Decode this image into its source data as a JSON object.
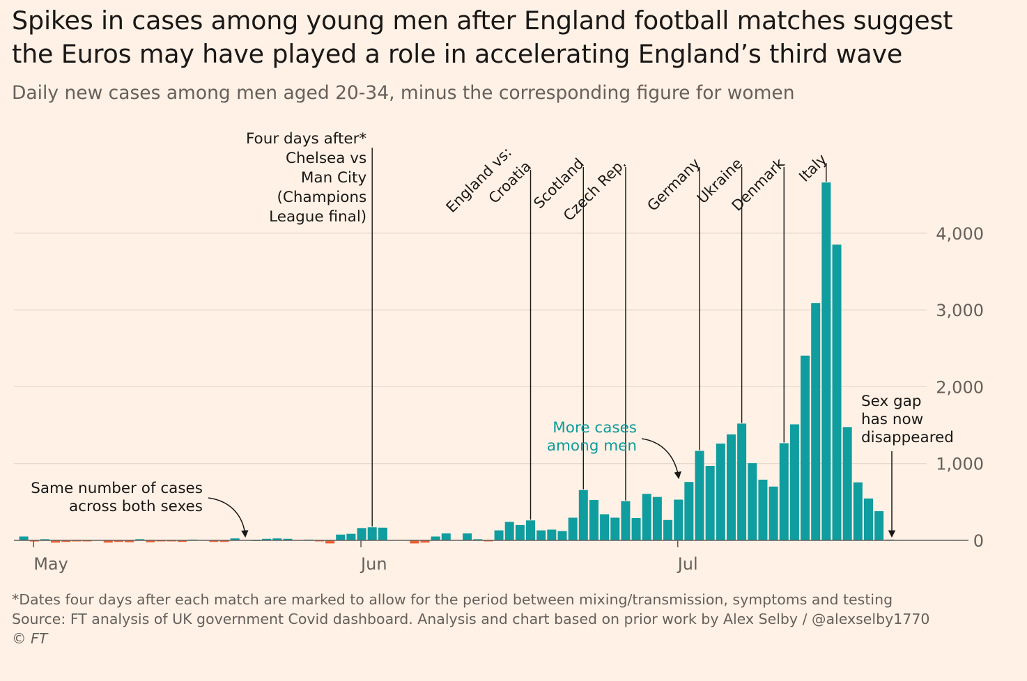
{
  "title_lines": [
    "Spikes in cases among young men after England football matches suggest",
    "the Euros may have played a role in accelerating England’s third wave"
  ],
  "subtitle": "Daily new cases among men aged 20-34, minus the corresponding figure for women",
  "footer": {
    "note": "*Dates four days after each match are marked to allow for the period between mixing/transmission, symptoms and testing",
    "source": "Source: FT analysis of UK government Covid dashboard. Analysis and chart based on prior work by Alex Selby / @alexselby1770",
    "copyright": "© FT"
  },
  "colors": {
    "positive": "#0f9d9f",
    "negative": "#eb5e32",
    "background": "#fff1e5",
    "annotation_teal": "#0d9a9a"
  },
  "chart_data": {
    "type": "bar",
    "x_start": "2021-04-30",
    "x_ticks": [
      "May",
      "Jun",
      "Jul"
    ],
    "y_ticks": [
      "0",
      "1,000",
      "2,000",
      "3,000",
      "4,000"
    ],
    "ylim": [
      -50,
      4800
    ],
    "grid": true,
    "values": [
      50,
      -15,
      15,
      -30,
      -20,
      -10,
      -5,
      0,
      -30,
      -20,
      -25,
      15,
      -25,
      -10,
      -10,
      -20,
      10,
      0,
      -20,
      -20,
      25,
      0,
      5,
      20,
      25,
      20,
      0,
      10,
      -10,
      -40,
      75,
      85,
      160,
      170,
      165,
      0,
      0,
      -40,
      -30,
      50,
      90,
      0,
      90,
      15,
      -5,
      130,
      240,
      200,
      260,
      130,
      140,
      120,
      295,
      655,
      525,
      340,
      295,
      510,
      290,
      605,
      565,
      265,
      530,
      760,
      1165,
      970,
      1260,
      1380,
      1520,
      1005,
      790,
      700,
      1265,
      1510,
      2405,
      3090,
      4660,
      3850,
      1475,
      755,
      545,
      380,
      10
    ],
    "match_markers": [
      {
        "label": "Four days after* Chelsea vs Man City (Champions League final)",
        "date": "2021-06-02"
      },
      {
        "label": "England vs: Croatia",
        "date": "2021-06-17"
      },
      {
        "label": "Scotland",
        "date": "2021-06-22"
      },
      {
        "label": "Czech Rep.",
        "date": "2021-06-26"
      },
      {
        "label": "Germany",
        "date": "2021-07-03"
      },
      {
        "label": "Ukraine",
        "date": "2021-07-07"
      },
      {
        "label": "Denmark",
        "date": "2021-07-11"
      },
      {
        "label": "Italy",
        "date": "2021-07-15"
      }
    ],
    "annotations": {
      "chelsea_lines": [
        "Four days after*",
        "Chelsea vs",
        "Man City",
        "(Champions",
        "League final)"
      ],
      "croatia_lines": [
        "England vs:",
        "Croatia"
      ],
      "same_lines": [
        "Same number of cases",
        "across both sexes"
      ],
      "more_lines": [
        "More cases",
        "among men"
      ],
      "gap_lines": [
        "Sex gap",
        "has now",
        "disappeared"
      ]
    }
  }
}
